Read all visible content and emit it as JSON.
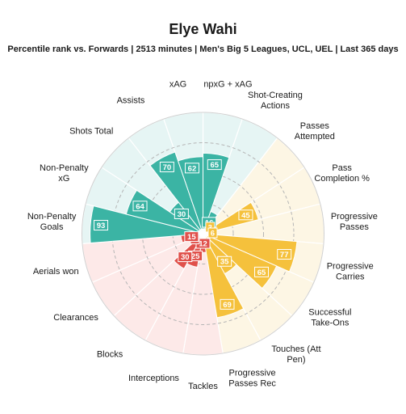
{
  "header": {
    "title": "Elye Wahi",
    "subtitle": "Percentile rank vs. Forwards | 2513 minutes | Men's Big 5 Leagues, UCL, UEL | Last 365 days"
  },
  "colors": {
    "attacking": "#3bb4a4",
    "possession": "#f5c13c",
    "defending": "#e0514b",
    "attacking_bg": "#e6f5f4",
    "possession_bg": "#fdf6e4",
    "defending_bg": "#fde9e8"
  },
  "chart_data": {
    "type": "polar-bar",
    "title": "Elye Wahi",
    "subtitle": "Percentile rank vs. Forwards | 2513 minutes | Men's Big 5 Leagues, UCL, UEL | Last 365 days",
    "rlim": [
      0,
      100
    ],
    "grid": true,
    "categories": [
      {
        "label": [
          "npxG + xAG"
        ],
        "value": 65,
        "group": "attacking"
      },
      {
        "label": [
          "Shot-Creating",
          "Actions"
        ],
        "value": 16,
        "group": "attacking"
      },
      {
        "label": [
          "Passes",
          "Attempted"
        ],
        "value": 3,
        "group": "possession"
      },
      {
        "label": [
          "Pass",
          "Completion %"
        ],
        "value": 45,
        "group": "possession"
      },
      {
        "label": [
          "Progressive",
          "Passes"
        ],
        "value": 6,
        "group": "possession"
      },
      {
        "label": [
          "Progressive",
          "Carries"
        ],
        "value": 77,
        "group": "possession"
      },
      {
        "label": [
          "Successful",
          "Take-Ons"
        ],
        "value": 65,
        "group": "possession"
      },
      {
        "label": [
          "Touches (Att",
          "Pen)"
        ],
        "value": 35,
        "group": "possession"
      },
      {
        "label": [
          "Progressive",
          "Passes Rec"
        ],
        "value": 69,
        "group": "possession"
      },
      {
        "label": [
          "Tackles"
        ],
        "value": 12,
        "group": "defending"
      },
      {
        "label": [
          "Interceptions"
        ],
        "value": 25,
        "group": "defending"
      },
      {
        "label": [
          "Blocks"
        ],
        "value": 30,
        "group": "defending"
      },
      {
        "label": [
          "Clearances"
        ],
        "value": 6,
        "group": "defending"
      },
      {
        "label": [
          "Aerials won"
        ],
        "value": 15,
        "group": "defending"
      },
      {
        "label": [
          "Non-Penalty",
          "Goals"
        ],
        "value": 93,
        "group": "attacking"
      },
      {
        "label": [
          "Non-Penalty",
          "xG"
        ],
        "value": 64,
        "group": "attacking"
      },
      {
        "label": [
          "Shots Total"
        ],
        "value": 30,
        "group": "attacking"
      },
      {
        "label": [
          "Assists"
        ],
        "value": 70,
        "group": "attacking"
      },
      {
        "label": [
          "xAG"
        ],
        "value": 62,
        "group": "attacking"
      }
    ]
  }
}
